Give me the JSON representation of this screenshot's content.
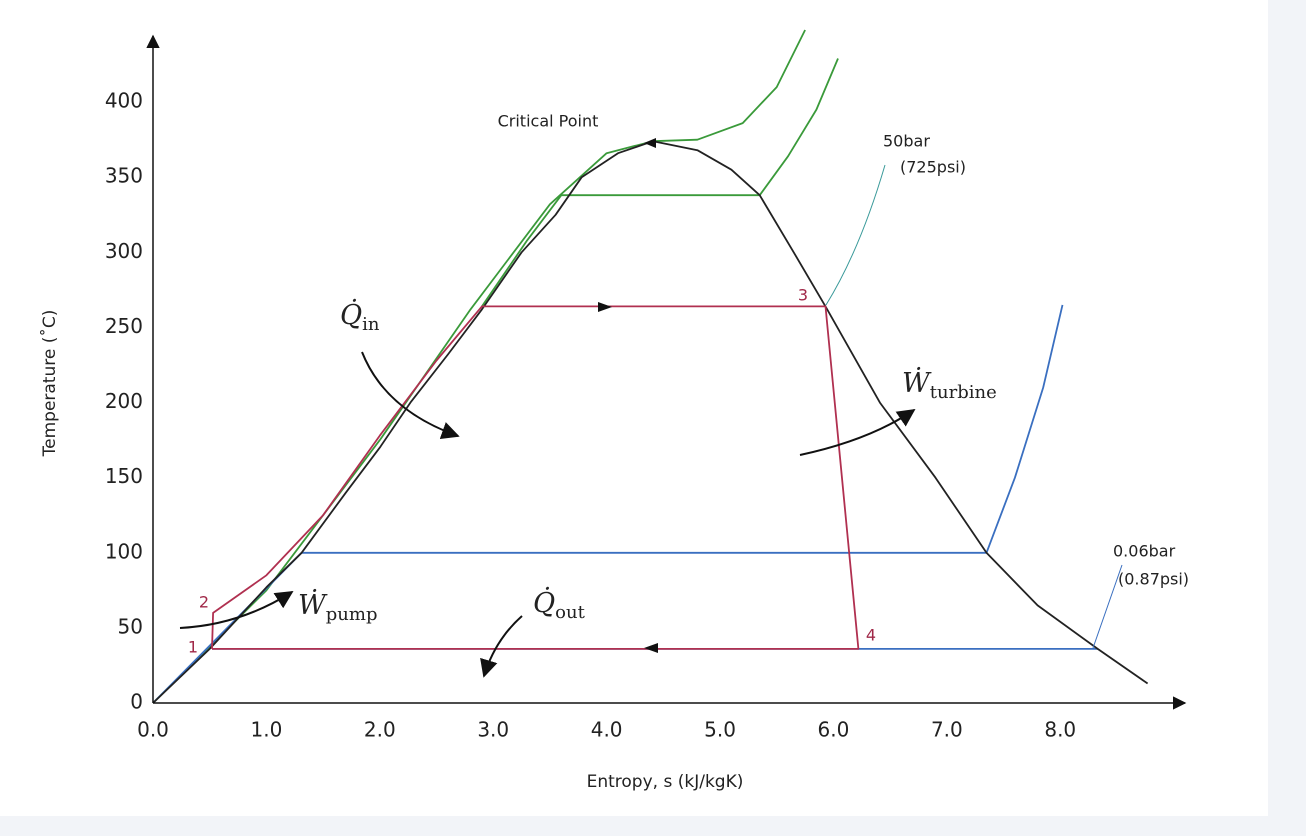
{
  "chart_data": {
    "type": "line",
    "x_label": "Entropy, s (kJ/kgK)",
    "y_label": "Temperature (˚C)",
    "xlim": [
      0,
      9.1
    ],
    "ylim": [
      0,
      448
    ],
    "xticks": [
      {
        "value": 0,
        "label": "0.0"
      },
      {
        "value": 1,
        "label": "1.0"
      },
      {
        "value": 2,
        "label": "2.0"
      },
      {
        "value": 3,
        "label": "3.0"
      },
      {
        "value": 4,
        "label": "4.0"
      },
      {
        "value": 5,
        "label": "5.0"
      },
      {
        "value": 6,
        "label": "6.0"
      },
      {
        "value": 7,
        "label": "7.0"
      },
      {
        "value": 8,
        "label": "8.0"
      }
    ],
    "yticks": [
      0,
      50,
      100,
      150,
      200,
      250,
      300,
      350,
      400
    ],
    "grid": false,
    "series": [
      {
        "color": "#3a9a3a",
        "x": [
          0,
          1.0,
          2.0,
          2.8,
          3.5,
          4.0,
          4.41,
          4.8,
          5.2,
          5.5,
          5.75
        ],
        "values": [
          0,
          75,
          175,
          262,
          332,
          366,
          374,
          375,
          386,
          410,
          448
        ]
      },
      {
        "color": "#3a9a3a",
        "x": [
          2.9,
          3.3,
          3.6,
          5.35,
          5.6,
          5.85,
          6.04
        ],
        "values": [
          264,
          308,
          338,
          338,
          364,
          395,
          429
        ]
      },
      {
        "color": "#3a6fc0",
        "x": [
          0,
          1.31,
          7.35,
          7.6,
          7.85,
          8.02
        ],
        "values": [
          0,
          100,
          100,
          150,
          210,
          265
        ]
      },
      {
        "color": "#3a6fc0",
        "x": [
          0.52,
          8.33
        ],
        "values": [
          36,
          36
        ]
      },
      {
        "color": "#222222",
        "x": [
          0,
          0.5,
          1.0,
          1.31,
          1.7,
          2.0,
          2.27,
          2.6,
          2.9,
          3.25,
          3.55,
          3.78,
          4.1,
          4.41,
          4.8,
          5.1,
          5.35,
          5.65,
          5.93,
          6.41,
          6.9,
          7.35,
          7.8,
          8.33,
          8.77
        ],
        "values": [
          0,
          36,
          77,
          100,
          140,
          170,
          200,
          232,
          262,
          300,
          325,
          350,
          366,
          374,
          368,
          355,
          338,
          300,
          264,
          200,
          150,
          100,
          65,
          36,
          13
        ]
      },
      {
        "color": "#b03050",
        "x": [
          0.52,
          0.53,
          1.0,
          1.5,
          2.0,
          2.5,
          2.9,
          5.93,
          6.22,
          0.52
        ],
        "values": [
          36,
          60,
          85,
          125,
          178,
          228,
          264,
          264,
          36,
          36
        ]
      }
    ],
    "point_labels": [
      "1",
      "2",
      "3",
      "4"
    ],
    "annotations": [
      {
        "text": "Critical Point"
      },
      {
        "text": "50bar"
      },
      {
        "text": "(725psi)"
      },
      {
        "text": "0.06bar"
      },
      {
        "text": "(0.87psi)"
      },
      {
        "text": "Q̇",
        "sub": "in"
      },
      {
        "text": "Ẇ",
        "sub": "turbine"
      },
      {
        "text": "Ẇ",
        "sub": "pump"
      },
      {
        "text": "Q̇",
        "sub": "out"
      }
    ]
  }
}
